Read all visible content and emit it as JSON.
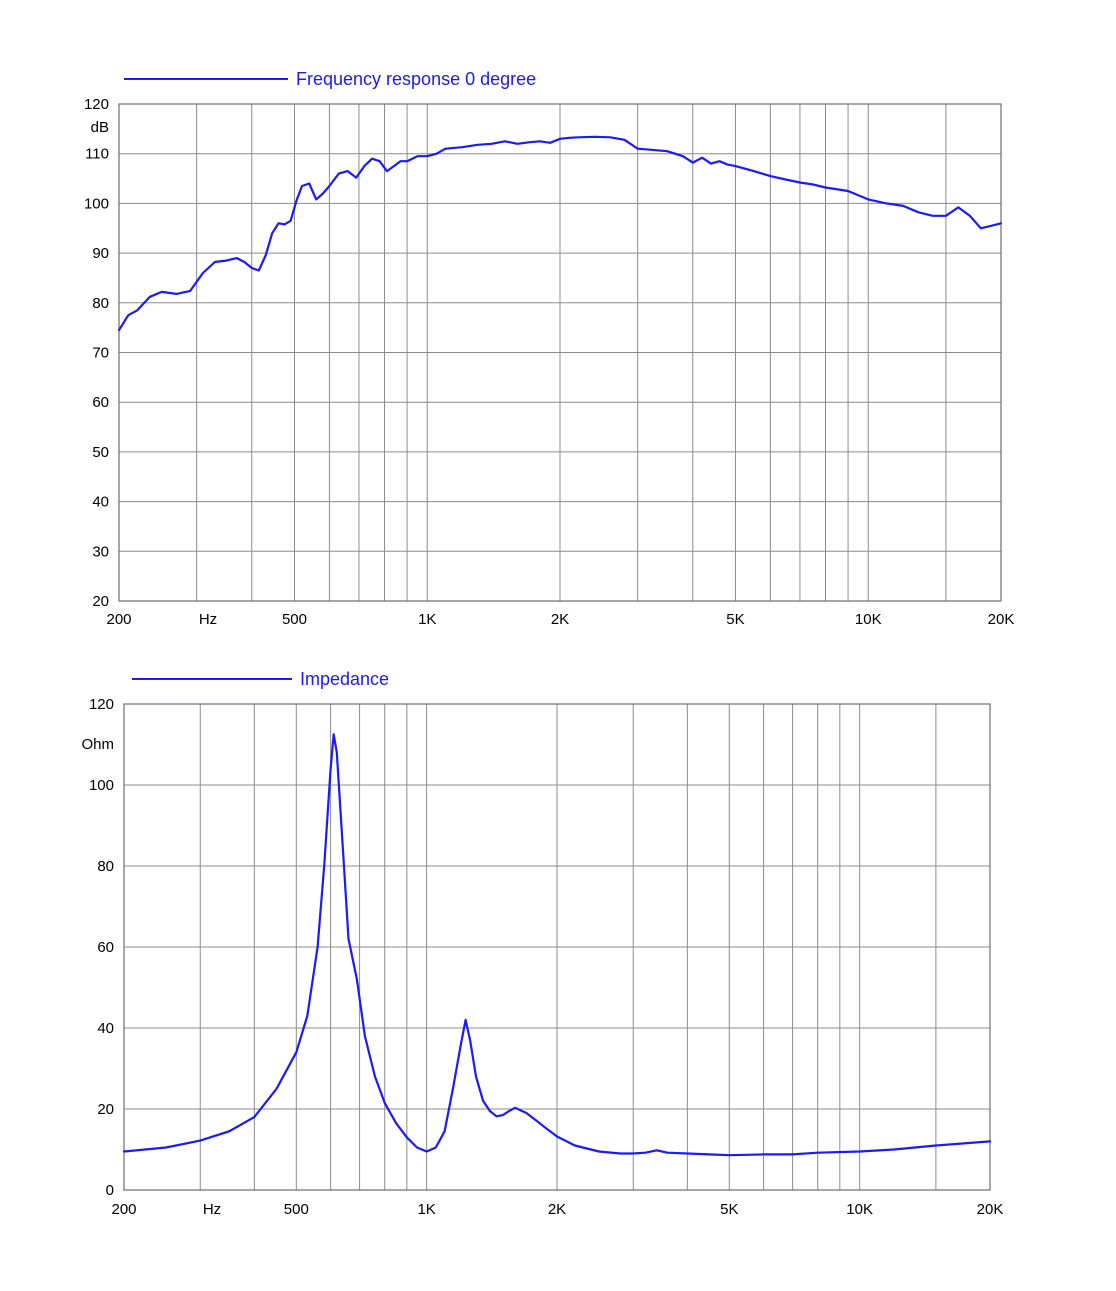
{
  "colors": {
    "curve": "#1a1aff",
    "grid": "#8c8c8c",
    "text": "#000000"
  },
  "chart_data": [
    {
      "type": "line",
      "legend": "Frequency response 0 degree",
      "unit_label": "dB",
      "x_unit_label": "Hz",
      "xscale": "log",
      "xlim": [
        200,
        20000
      ],
      "ylim": [
        20,
        120
      ],
      "y_ticks": [
        20,
        30,
        40,
        50,
        60,
        70,
        80,
        90,
        100,
        110,
        120
      ],
      "x_tick_labels": [
        {
          "value": 200,
          "label": "200"
        },
        {
          "value": 500,
          "label": "500"
        },
        {
          "value": 1000,
          "label": "1K"
        },
        {
          "value": 2000,
          "label": "2K"
        },
        {
          "value": 5000,
          "label": "5K"
        },
        {
          "value": 10000,
          "label": "10K"
        },
        {
          "value": 20000,
          "label": "20K"
        }
      ],
      "grid_x": [
        300,
        400,
        500,
        600,
        700,
        800,
        900,
        1000,
        2000,
        3000,
        4000,
        5000,
        6000,
        7000,
        8000,
        9000,
        10000,
        15000
      ],
      "grid": true,
      "series": [
        {
          "name": "Frequency response 0 degree",
          "x": [
            200,
            210,
            220,
            235,
            250,
            270,
            290,
            310,
            330,
            350,
            370,
            385,
            400,
            415,
            430,
            445,
            460,
            475,
            490,
            505,
            520,
            540,
            560,
            580,
            600,
            630,
            660,
            690,
            720,
            750,
            780,
            810,
            840,
            870,
            900,
            950,
            1000,
            1050,
            1100,
            1200,
            1300,
            1400,
            1500,
            1600,
            1700,
            1800,
            1900,
            2000,
            2100,
            2200,
            2400,
            2600,
            2800,
            3000,
            3200,
            3500,
            3800,
            4000,
            4200,
            4400,
            4600,
            4800,
            5000,
            5500,
            6000,
            6500,
            7000,
            7500,
            8000,
            9000,
            10000,
            11000,
            12000,
            13000,
            14000,
            15000,
            16000,
            17000,
            18000,
            19000,
            20000
          ],
          "y": [
            74.5,
            77.5,
            78.5,
            81.2,
            82.2,
            81.8,
            82.4,
            86,
            88.2,
            88.5,
            89,
            88.2,
            87,
            86.5,
            89.5,
            94,
            96,
            95.8,
            96.5,
            100.5,
            103.5,
            104,
            100.8,
            102,
            103.5,
            106,
            106.5,
            105.2,
            107.5,
            109,
            108.5,
            106.5,
            107.5,
            108.5,
            108.5,
            109.5,
            109.5,
            110,
            111,
            111.3,
            111.8,
            112,
            112.5,
            112,
            112.3,
            112.5,
            112.2,
            113,
            113.2,
            113.3,
            113.4,
            113.3,
            112.8,
            111,
            110.8,
            110.5,
            109.5,
            108.2,
            109.2,
            108,
            108.5,
            107.8,
            107.5,
            106.5,
            105.5,
            104.8,
            104.2,
            103.8,
            103.2,
            102.5,
            100.8,
            100,
            99.5,
            98.2,
            97.5,
            97.5,
            99.2,
            97.5,
            95,
            95.5,
            96
          ]
        }
      ]
    },
    {
      "type": "line",
      "legend": "Impedance",
      "unit_label": "Ohm",
      "x_unit_label": "Hz",
      "xscale": "log",
      "xlim": [
        200,
        20000
      ],
      "ylim": [
        0,
        120
      ],
      "y_ticks": [
        0,
        20,
        40,
        60,
        80,
        100,
        120
      ],
      "x_tick_labels": [
        {
          "value": 200,
          "label": "200"
        },
        {
          "value": 500,
          "label": "500"
        },
        {
          "value": 1000,
          "label": "1K"
        },
        {
          "value": 2000,
          "label": "2K"
        },
        {
          "value": 5000,
          "label": "5K"
        },
        {
          "value": 10000,
          "label": "10K"
        },
        {
          "value": 20000,
          "label": "20K"
        }
      ],
      "grid_x": [
        300,
        400,
        500,
        600,
        700,
        800,
        900,
        1000,
        2000,
        3000,
        4000,
        5000,
        6000,
        7000,
        8000,
        9000,
        10000,
        15000
      ],
      "grid": true,
      "series": [
        {
          "name": "Impedance",
          "x": [
            200,
            250,
            300,
            350,
            400,
            450,
            500,
            530,
            560,
            580,
            600,
            610,
            620,
            640,
            660,
            690,
            720,
            760,
            800,
            850,
            900,
            950,
            1000,
            1050,
            1100,
            1150,
            1200,
            1230,
            1260,
            1300,
            1350,
            1400,
            1450,
            1500,
            1550,
            1600,
            1700,
            1800,
            1900,
            2000,
            2200,
            2500,
            2800,
            3000,
            3200,
            3400,
            3600,
            4000,
            4500,
            5000,
            5500,
            6000,
            7000,
            8000,
            10000,
            12000,
            15000,
            20000
          ],
          "y": [
            9.5,
            10.5,
            12.2,
            14.5,
            18,
            25,
            34,
            43,
            60,
            80,
            104,
            112.5,
            108,
            85,
            62,
            52,
            38,
            28,
            21.5,
            16.5,
            13,
            10.5,
            9.5,
            10.5,
            14.5,
            25,
            36,
            42,
            37,
            28,
            22,
            19.5,
            18.2,
            18.5,
            19.5,
            20.3,
            19,
            17,
            15,
            13.2,
            11,
            9.5,
            9,
            9,
            9.2,
            9.8,
            9.2,
            9,
            8.8,
            8.6,
            8.7,
            8.8,
            8.8,
            9.2,
            9.5,
            10,
            11,
            12
          ]
        }
      ]
    }
  ]
}
